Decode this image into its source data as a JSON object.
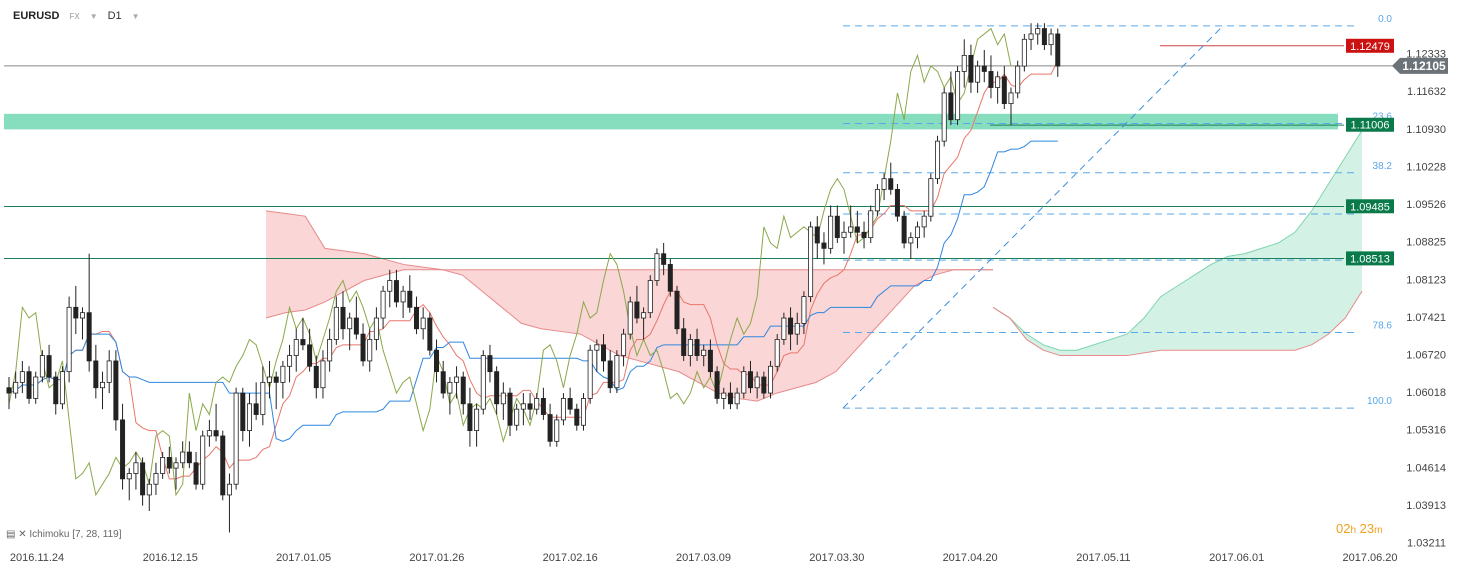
{
  "header": {
    "symbol": "EURUSD",
    "market": "FX",
    "timeframe": "D1"
  },
  "indicator": {
    "name": "Ichimoku",
    "params": "[7, 28, 119]"
  },
  "timer": {
    "hours": "02",
    "h": "h",
    "minutes": "23",
    "m": "m"
  },
  "chart_data": {
    "type": "candlestick",
    "x_tick_labels": [
      "2016.11.24",
      "2016.12.15",
      "2017.01.05",
      "2017.01.26",
      "2017.02.16",
      "2017.03.09",
      "2017.03.30",
      "2017.04.20",
      "2017.05.11",
      "2017.06.01",
      "2017.06.20"
    ],
    "y_tick_labels": [
      "1.12333",
      "1.11632",
      "1.10930",
      "1.10228",
      "1.09526",
      "1.08825",
      "1.08123",
      "1.07421",
      "1.06720",
      "1.06018",
      "1.05316",
      "1.04614",
      "1.03913",
      "1.03211"
    ],
    "ylim": [
      1.0311,
      1.1296
    ],
    "current_price": "1.12105",
    "price_tags": [
      {
        "label": "1.12479",
        "value": 1.12479,
        "color": "#cc1111"
      },
      {
        "label": "1.11006",
        "value": 1.11006,
        "color": "#0b7a4b"
      },
      {
        "label": "1.09485",
        "value": 1.09485,
        "color": "#0b7a4b"
      },
      {
        "label": "1.08513",
        "value": 1.08513,
        "color": "#0b7a4b"
      }
    ],
    "fibonacci": [
      {
        "label": "0.0",
        "value": 1.1285
      },
      {
        "label": "23.6",
        "value": 1.1103
      },
      {
        "label": "38.2",
        "value": 1.1011
      },
      {
        "label": "",
        "value": 1.0934
      },
      {
        "label": "",
        "value": 1.0848
      },
      {
        "label": "78.6",
        "value": 1.0713
      },
      {
        "label": "100.0",
        "value": 1.0572
      }
    ],
    "zone": {
      "top": 1.1121,
      "bottom": 1.1092,
      "color": "#5fd3a8"
    },
    "series": {
      "candles": [
        [
          1.061,
          1.063,
          1.057,
          1.06
        ],
        [
          1.06,
          1.064,
          1.059,
          1.062
        ],
        [
          1.062,
          1.066,
          1.06,
          1.064
        ],
        [
          1.064,
          1.065,
          1.058,
          1.059
        ],
        [
          1.059,
          1.064,
          1.058,
          1.063
        ],
        [
          1.063,
          1.068,
          1.062,
          1.067
        ],
        [
          1.067,
          1.069,
          1.062,
          1.063
        ],
        [
          1.063,
          1.064,
          1.056,
          1.058
        ],
        [
          1.058,
          1.065,
          1.057,
          1.064
        ],
        [
          1.064,
          1.078,
          1.062,
          1.076
        ],
        [
          1.076,
          1.08,
          1.071,
          1.074
        ],
        [
          1.074,
          1.076,
          1.07,
          1.075
        ],
        [
          1.075,
          1.086,
          1.064,
          1.066
        ],
        [
          1.066,
          1.069,
          1.059,
          1.061
        ],
        [
          1.061,
          1.064,
          1.057,
          1.062
        ],
        [
          1.062,
          1.068,
          1.06,
          1.066
        ],
        [
          1.066,
          1.068,
          1.053,
          1.055
        ],
        [
          1.055,
          1.058,
          1.042,
          1.044
        ],
        [
          1.044,
          1.046,
          1.04,
          1.045
        ],
        [
          1.045,
          1.049,
          1.042,
          1.047
        ],
        [
          1.047,
          1.048,
          1.039,
          1.041
        ],
        [
          1.041,
          1.044,
          1.038,
          1.043
        ],
        [
          1.043,
          1.047,
          1.041,
          1.045
        ],
        [
          1.045,
          1.049,
          1.044,
          1.048
        ],
        [
          1.048,
          1.05,
          1.045,
          1.046
        ],
        [
          1.046,
          1.048,
          1.042,
          1.047
        ],
        [
          1.047,
          1.051,
          1.046,
          1.049
        ],
        [
          1.049,
          1.051,
          1.046,
          1.047
        ],
        [
          1.047,
          1.049,
          1.042,
          1.043
        ],
        [
          1.043,
          1.053,
          1.042,
          1.052
        ],
        [
          1.052,
          1.055,
          1.05,
          1.053
        ],
        [
          1.053,
          1.058,
          1.051,
          1.052
        ],
        [
          1.052,
          1.053,
          1.04,
          1.041
        ],
        [
          1.041,
          1.045,
          1.034,
          1.043
        ],
        [
          1.043,
          1.061,
          1.042,
          1.06
        ],
        [
          1.06,
          1.061,
          1.051,
          1.053
        ],
        [
          1.053,
          1.06,
          1.05,
          1.058
        ],
        [
          1.058,
          1.062,
          1.055,
          1.056
        ],
        [
          1.056,
          1.065,
          1.054,
          1.062
        ],
        [
          1.062,
          1.066,
          1.059,
          1.063
        ],
        [
          1.063,
          1.064,
          1.057,
          1.062
        ],
        [
          1.062,
          1.066,
          1.059,
          1.065
        ],
        [
          1.065,
          1.069,
          1.062,
          1.067
        ],
        [
          1.067,
          1.072,
          1.064,
          1.07
        ],
        [
          1.07,
          1.074,
          1.068,
          1.069
        ],
        [
          1.069,
          1.072,
          1.064,
          1.065
        ],
        [
          1.065,
          1.067,
          1.059,
          1.061
        ],
        [
          1.061,
          1.068,
          1.059,
          1.066
        ],
        [
          1.066,
          1.072,
          1.064,
          1.07
        ],
        [
          1.07,
          1.078,
          1.069,
          1.076
        ],
        [
          1.076,
          1.079,
          1.07,
          1.072
        ],
        [
          1.072,
          1.075,
          1.068,
          1.074
        ],
        [
          1.074,
          1.078,
          1.07,
          1.071
        ],
        [
          1.071,
          1.073,
          1.065,
          1.066
        ],
        [
          1.066,
          1.072,
          1.064,
          1.07
        ],
        [
          1.07,
          1.076,
          1.068,
          1.074
        ],
        [
          1.074,
          1.08,
          1.072,
          1.079
        ],
        [
          1.079,
          1.083,
          1.076,
          1.081
        ],
        [
          1.081,
          1.083,
          1.076,
          1.077
        ],
        [
          1.077,
          1.08,
          1.074,
          1.079
        ],
        [
          1.079,
          1.082,
          1.075,
          1.076
        ],
        [
          1.076,
          1.078,
          1.071,
          1.072
        ],
        [
          1.072,
          1.076,
          1.07,
          1.074
        ],
        [
          1.074,
          1.075,
          1.067,
          1.068
        ],
        [
          1.068,
          1.07,
          1.062,
          1.064
        ],
        [
          1.064,
          1.066,
          1.059,
          1.06
        ],
        [
          1.06,
          1.063,
          1.056,
          1.062
        ],
        [
          1.062,
          1.065,
          1.059,
          1.063
        ],
        [
          1.063,
          1.064,
          1.056,
          1.058
        ],
        [
          1.058,
          1.061,
          1.05,
          1.053
        ],
        [
          1.053,
          1.058,
          1.05,
          1.057
        ],
        [
          1.057,
          1.068,
          1.056,
          1.067
        ],
        [
          1.067,
          1.069,
          1.062,
          1.064
        ],
        [
          1.064,
          1.065,
          1.056,
          1.058
        ],
        [
          1.058,
          1.062,
          1.055,
          1.06
        ],
        [
          1.06,
          1.061,
          1.052,
          1.054
        ],
        [
          1.054,
          1.058,
          1.053,
          1.057
        ],
        [
          1.057,
          1.06,
          1.054,
          1.058
        ],
        [
          1.058,
          1.06,
          1.055,
          1.057
        ],
        [
          1.057,
          1.06,
          1.056,
          1.059
        ],
        [
          1.059,
          1.061,
          1.055,
          1.056
        ],
        [
          1.056,
          1.058,
          1.05,
          1.051
        ],
        [
          1.051,
          1.056,
          1.05,
          1.055
        ],
        [
          1.055,
          1.06,
          1.054,
          1.059
        ],
        [
          1.059,
          1.061,
          1.056,
          1.057
        ],
        [
          1.057,
          1.058,
          1.053,
          1.054
        ],
        [
          1.054,
          1.06,
          1.053,
          1.059
        ],
        [
          1.059,
          1.069,
          1.058,
          1.068
        ],
        [
          1.068,
          1.07,
          1.064,
          1.069
        ],
        [
          1.069,
          1.071,
          1.064,
          1.066
        ],
        [
          1.066,
          1.068,
          1.06,
          1.061
        ],
        [
          1.061,
          1.068,
          1.06,
          1.067
        ],
        [
          1.067,
          1.072,
          1.065,
          1.071
        ],
        [
          1.071,
          1.078,
          1.07,
          1.077
        ],
        [
          1.077,
          1.08,
          1.073,
          1.074
        ],
        [
          1.074,
          1.076,
          1.07,
          1.075
        ],
        [
          1.075,
          1.082,
          1.074,
          1.081
        ],
        [
          1.081,
          1.087,
          1.08,
          1.086
        ],
        [
          1.086,
          1.088,
          1.082,
          1.084
        ],
        [
          1.084,
          1.085,
          1.078,
          1.079
        ],
        [
          1.079,
          1.08,
          1.071,
          1.072
        ],
        [
          1.072,
          1.074,
          1.066,
          1.067
        ],
        [
          1.067,
          1.071,
          1.065,
          1.07
        ],
        [
          1.07,
          1.072,
          1.066,
          1.067
        ],
        [
          1.067,
          1.069,
          1.065,
          1.068
        ],
        [
          1.068,
          1.07,
          1.063,
          1.064
        ],
        [
          1.064,
          1.065,
          1.058,
          1.059
        ],
        [
          1.059,
          1.061,
          1.057,
          1.06
        ],
        [
          1.06,
          1.062,
          1.057,
          1.058
        ],
        [
          1.058,
          1.061,
          1.057,
          1.06
        ],
        [
          1.06,
          1.065,
          1.059,
          1.064
        ],
        [
          1.064,
          1.066,
          1.06,
          1.061
        ],
        [
          1.061,
          1.064,
          1.059,
          1.063
        ],
        [
          1.063,
          1.064,
          1.059,
          1.06
        ],
        [
          1.06,
          1.066,
          1.059,
          1.065
        ],
        [
          1.065,
          1.071,
          1.064,
          1.07
        ],
        [
          1.07,
          1.075,
          1.069,
          1.074
        ],
        [
          1.074,
          1.076,
          1.068,
          1.071
        ],
        [
          1.071,
          1.075,
          1.069,
          1.073
        ],
        [
          1.073,
          1.079,
          1.071,
          1.078
        ],
        [
          1.078,
          1.092,
          1.077,
          1.091
        ],
        [
          1.091,
          1.093,
          1.085,
          1.088
        ],
        [
          1.088,
          1.09,
          1.084,
          1.087
        ],
        [
          1.087,
          1.095,
          1.086,
          1.093
        ],
        [
          1.093,
          1.095,
          1.088,
          1.089
        ],
        [
          1.089,
          1.092,
          1.086,
          1.09
        ],
        [
          1.09,
          1.095,
          1.089,
          1.091
        ],
        [
          1.091,
          1.094,
          1.088,
          1.09
        ],
        [
          1.09,
          1.092,
          1.087,
          1.089
        ],
        [
          1.089,
          1.095,
          1.088,
          1.094
        ],
        [
          1.094,
          1.099,
          1.093,
          1.098
        ],
        [
          1.098,
          1.101,
          1.096,
          1.1
        ],
        [
          1.1,
          1.103,
          1.097,
          1.098
        ],
        [
          1.098,
          1.099,
          1.092,
          1.093
        ],
        [
          1.093,
          1.094,
          1.087,
          1.088
        ],
        [
          1.088,
          1.09,
          1.085,
          1.089
        ],
        [
          1.089,
          1.092,
          1.087,
          1.091
        ],
        [
          1.091,
          1.094,
          1.089,
          1.093
        ],
        [
          1.093,
          1.101,
          1.092,
          1.1
        ],
        [
          1.1,
          1.108,
          1.099,
          1.107
        ],
        [
          1.107,
          1.117,
          1.106,
          1.116
        ],
        [
          1.116,
          1.12,
          1.11,
          1.111
        ],
        [
          1.111,
          1.121,
          1.11,
          1.12
        ],
        [
          1.12,
          1.126,
          1.117,
          1.123
        ],
        [
          1.123,
          1.125,
          1.116,
          1.118
        ],
        [
          1.118,
          1.122,
          1.116,
          1.121
        ],
        [
          1.121,
          1.124,
          1.118,
          1.12
        ],
        [
          1.12,
          1.123,
          1.115,
          1.117
        ],
        [
          1.117,
          1.12,
          1.114,
          1.119
        ],
        [
          1.119,
          1.121,
          1.113,
          1.114
        ],
        [
          1.114,
          1.117,
          1.11,
          1.116
        ],
        [
          1.116,
          1.122,
          1.115,
          1.121
        ],
        [
          1.121,
          1.127,
          1.12,
          1.126
        ],
        [
          1.126,
          1.129,
          1.124,
          1.127
        ],
        [
          1.127,
          1.129,
          1.125,
          1.128
        ],
        [
          1.128,
          1.129,
          1.124,
          1.125
        ],
        [
          1.125,
          1.128,
          1.123,
          1.127
        ],
        [
          1.127,
          1.128,
          1.119,
          1.121
        ]
      ],
      "cloud_sentiment_lines": {
        "leading_a": [
          1.074,
          1.075,
          1.0755,
          1.077,
          1.079,
          1.081,
          1.082,
          1.083,
          1.083,
          1.083,
          1.082,
          1.079,
          1.076,
          1.073,
          1.072,
          1.0715,
          1.071,
          1.069,
          1.067,
          1.066,
          1.065,
          1.064,
          1.062,
          1.06,
          1.059,
          1.0585,
          1.06,
          1.061,
          1.062,
          1.064,
          1.068,
          1.072,
          1.076,
          1.08,
          1.082,
          1.083,
          1.083,
          1.083
        ],
        "leading_b": [
          1.094,
          1.0935,
          1.093,
          1.087,
          1.0865,
          1.086,
          1.085,
          1.084,
          1.0835,
          1.083,
          1.083,
          1.083,
          1.083,
          1.083,
          1.083,
          1.083,
          1.083,
          1.083,
          1.083,
          1.083,
          1.083,
          1.083,
          1.083,
          1.083,
          1.083,
          1.083,
          1.083,
          1.083,
          1.083,
          1.083,
          1.083,
          1.083,
          1.083,
          1.083,
          1.083,
          1.083,
          1.083,
          1.083
        ],
        "future_a": [
          1.076,
          1.074,
          1.071,
          1.069,
          1.068,
          1.068,
          1.069,
          1.07,
          1.071,
          1.074,
          1.078,
          1.08,
          1.082,
          1.084,
          1.0855,
          1.086,
          1.087,
          1.088,
          1.09,
          1.094,
          1.099,
          1.104,
          1.109
        ],
        "future_b": [
          1.076,
          1.074,
          1.07,
          1.068,
          1.067,
          1.067,
          1.067,
          1.067,
          1.067,
          1.0675,
          1.068,
          1.068,
          1.068,
          1.068,
          1.068,
          1.068,
          1.068,
          1.068,
          1.068,
          1.069,
          1.071,
          1.074,
          1.079
        ]
      }
    },
    "fib_line_start_price": 1.0572,
    "fib_line_end_price": 1.1285
  }
}
